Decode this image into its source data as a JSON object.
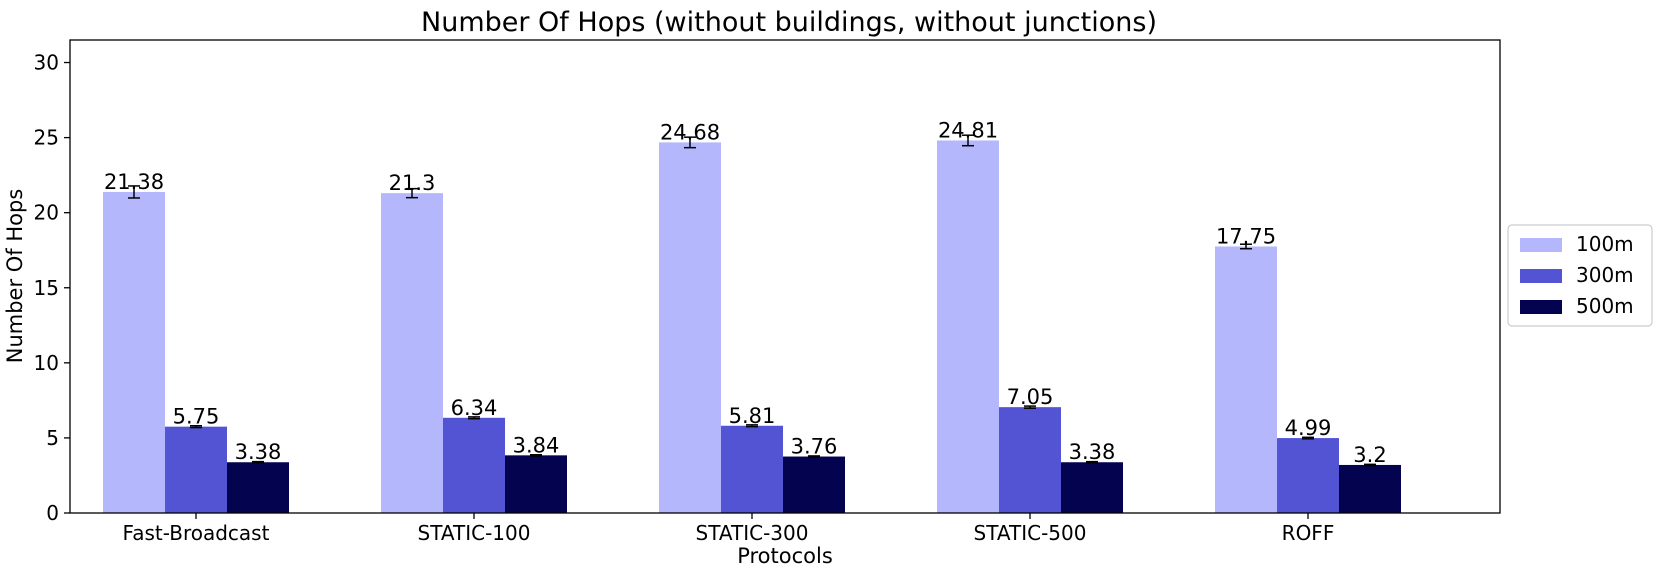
{
  "chart_data": {
    "type": "bar",
    "title": "Number Of Hops (without buildings, without junctions)",
    "xlabel": "Protocols",
    "ylabel": "Number Of Hops",
    "ylim": [
      0,
      31.5
    ],
    "yticks": [
      0,
      5,
      10,
      15,
      20,
      25,
      30
    ],
    "categories": [
      "Fast-Broadcast",
      "STATIC-100",
      "STATIC-300",
      "STATIC-500",
      "ROFF"
    ],
    "series": [
      {
        "name": "100m",
        "color": "#b4b7fb",
        "values": [
          21.38,
          21.3,
          24.68,
          24.81,
          17.75
        ],
        "labels": [
          "21.38",
          "21.3",
          "24.68",
          "24.81",
          "17.75"
        ],
        "errors": [
          0.4,
          0.3,
          0.35,
          0.35,
          0.15
        ]
      },
      {
        "name": "300m",
        "color": "#5254d4",
        "values": [
          5.75,
          6.34,
          5.81,
          7.05,
          4.99
        ],
        "labels": [
          "5.75",
          "6.34",
          "5.81",
          "7.05",
          "4.99"
        ],
        "errors": [
          0.06,
          0.06,
          0.06,
          0.07,
          0.05
        ]
      },
      {
        "name": "500m",
        "color": "#03034f",
        "values": [
          3.38,
          3.84,
          3.76,
          3.38,
          3.2
        ],
        "labels": [
          "3.38",
          "3.84",
          "3.76",
          "3.38",
          "3.2"
        ],
        "errors": [
          0.04,
          0.04,
          0.04,
          0.04,
          0.04
        ]
      }
    ],
    "grid": false,
    "legend_position": "right"
  }
}
